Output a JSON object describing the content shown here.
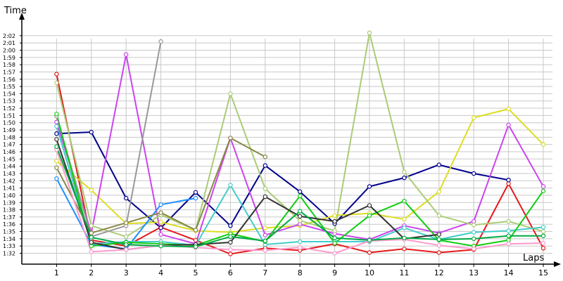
{
  "chart_data": {
    "type": "line",
    "title": "",
    "xlabel": "Laps",
    "ylabel": "Time",
    "x": [
      1,
      2,
      3,
      4,
      5,
      6,
      7,
      8,
      9,
      10,
      11,
      12,
      13,
      14,
      15
    ],
    "xlim": [
      0,
      15
    ],
    "ylim_seconds": [
      90.5,
      124.5
    ],
    "y_ticks": [
      "1:32",
      "1:33",
      "1:34",
      "1:35",
      "1:36",
      "1:37",
      "1:38",
      "1:39",
      "1:40",
      "1:41",
      "1:42",
      "1:43",
      "1:44",
      "1:45",
      "1:46",
      "1:47",
      "1:48",
      "1:49",
      "1:50",
      "1:51",
      "1:52",
      "1:53",
      "1:54",
      "1:55",
      "1:56",
      "1:57",
      "1:58",
      "1:59",
      "2:00",
      "2:01",
      "2:02"
    ],
    "y_units": "seconds",
    "grid": true,
    "legend": "none",
    "series": [
      {
        "color": "#e41a1c",
        "values": [
          116.7,
          93.8,
          93.0,
          95.6,
          93.8,
          91.9,
          92.7,
          92.4,
          93.3,
          92.1,
          92.6,
          92.1,
          92.5,
          101.6,
          92.7
        ]
      },
      {
        "color": "#00008b",
        "values": [
          108.5,
          108.7,
          99.6,
          95.5,
          100.4,
          95.8,
          104.1,
          100.5,
          96.1,
          101.2,
          102.4,
          104.2,
          103.0,
          102.1,
          null
        ]
      },
      {
        "color": "#dddd22",
        "values": [
          104.7,
          100.7,
          96.1,
          96.3,
          95.1,
          94.9,
          95.5,
          95.8,
          97.2,
          97.5,
          96.7,
          100.5,
          110.7,
          111.9,
          107.0
        ]
      },
      {
        "color": "#cc44ee",
        "values": [
          110.1,
          94.8,
          119.4,
          94.6,
          93.3,
          107.9,
          94.5,
          96.0,
          94.7,
          93.9,
          95.8,
          94.8,
          96.4,
          109.7,
          101.2
        ]
      },
      {
        "color": "#aacc77",
        "values": [
          115.5,
          95.8,
          94.3,
          97.3,
          95.2,
          114.0,
          100.9,
          96.5,
          95.1,
          122.4,
          103.2,
          97.2,
          95.9,
          96.4,
          95.0
        ]
      },
      {
        "color": "#999999",
        "values": [
          110.9,
          94.3,
          95.8,
          121.2,
          null,
          null,
          null,
          null,
          null,
          null,
          null,
          null,
          null,
          null,
          null
        ]
      },
      {
        "color": "#1e90ff",
        "values": [
          102.3,
          93.2,
          92.6,
          98.7,
          99.6,
          null,
          null,
          null,
          null,
          null,
          null,
          null,
          null,
          null,
          null
        ]
      },
      {
        "color": "#44cccc",
        "values": [
          109.5,
          93.3,
          93.6,
          93.6,
          93.1,
          101.4,
          93.2,
          93.6,
          93.6,
          93.6,
          95.5,
          93.9,
          94.9,
          95.1,
          95.6
        ]
      },
      {
        "color": "#11cc11",
        "values": [
          111.2,
          93.0,
          93.5,
          93.3,
          93.1,
          94.7,
          93.6,
          99.9,
          93.4,
          97.2,
          99.2,
          93.8,
          93.0,
          93.8,
          100.6
        ]
      },
      {
        "color": "#333333",
        "values": [
          107.7,
          93.5,
          92.5,
          93.1,
          93.2,
          93.5,
          99.8,
          97.1,
          96.4,
          98.6,
          94.0,
          94.6,
          null,
          null,
          null
        ]
      },
      {
        "color": "#888844",
        "values": [
          103.8,
          94.8,
          96.2,
          97.6,
          95.2,
          107.9,
          105.3,
          null,
          null,
          null,
          null,
          null,
          null,
          null,
          null
        ]
      },
      {
        "color": "#ff99cc",
        "values": [
          106.3,
          92.2,
          92.5,
          93.1,
          92.8,
          92.5,
          92.4,
          92.8,
          92.0,
          93.7,
          93.9,
          93.1,
          92.6,
          93.3,
          93.4
        ]
      },
      {
        "color": "#00aa44",
        "values": [
          106.7,
          94.2,
          93.2,
          93.0,
          92.9,
          94.3,
          93.7,
          97.8,
          94.1,
          93.8,
          94.1,
          93.9,
          94.0,
          94.4,
          94.4
        ]
      }
    ]
  }
}
